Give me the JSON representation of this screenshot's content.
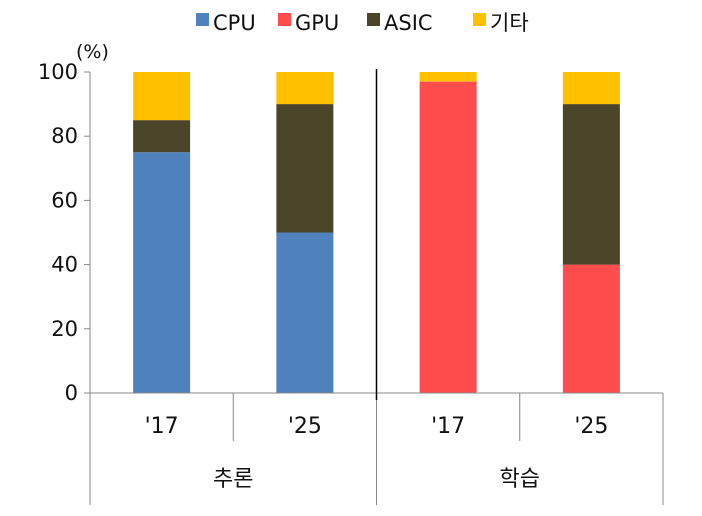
{
  "chart_data": {
    "type": "bar",
    "stacked": true,
    "y_unit_label": "(%)",
    "ylim": [
      0,
      100
    ],
    "yticks": [
      0,
      20,
      40,
      60,
      80,
      100
    ],
    "categories": [
      "'17",
      "'25",
      "'17",
      "'25"
    ],
    "groups": [
      {
        "label": "추론",
        "categories": [
          0,
          1
        ]
      },
      {
        "label": "학습",
        "categories": [
          2,
          3
        ]
      }
    ],
    "series": [
      {
        "name": "CPU",
        "color": "#4F81BD",
        "values": [
          75,
          50,
          0,
          0
        ]
      },
      {
        "name": "GPU",
        "color": "#FF4D4D",
        "values": [
          0,
          0,
          97,
          40
        ]
      },
      {
        "name": "ASIC",
        "color": "#4A4428",
        "values": [
          10,
          40,
          0,
          50
        ]
      },
      {
        "name": "기타",
        "color": "#FFC000",
        "values": [
          15,
          10,
          3,
          10
        ]
      }
    ],
    "legend_position": "top-center",
    "grid": false
  }
}
